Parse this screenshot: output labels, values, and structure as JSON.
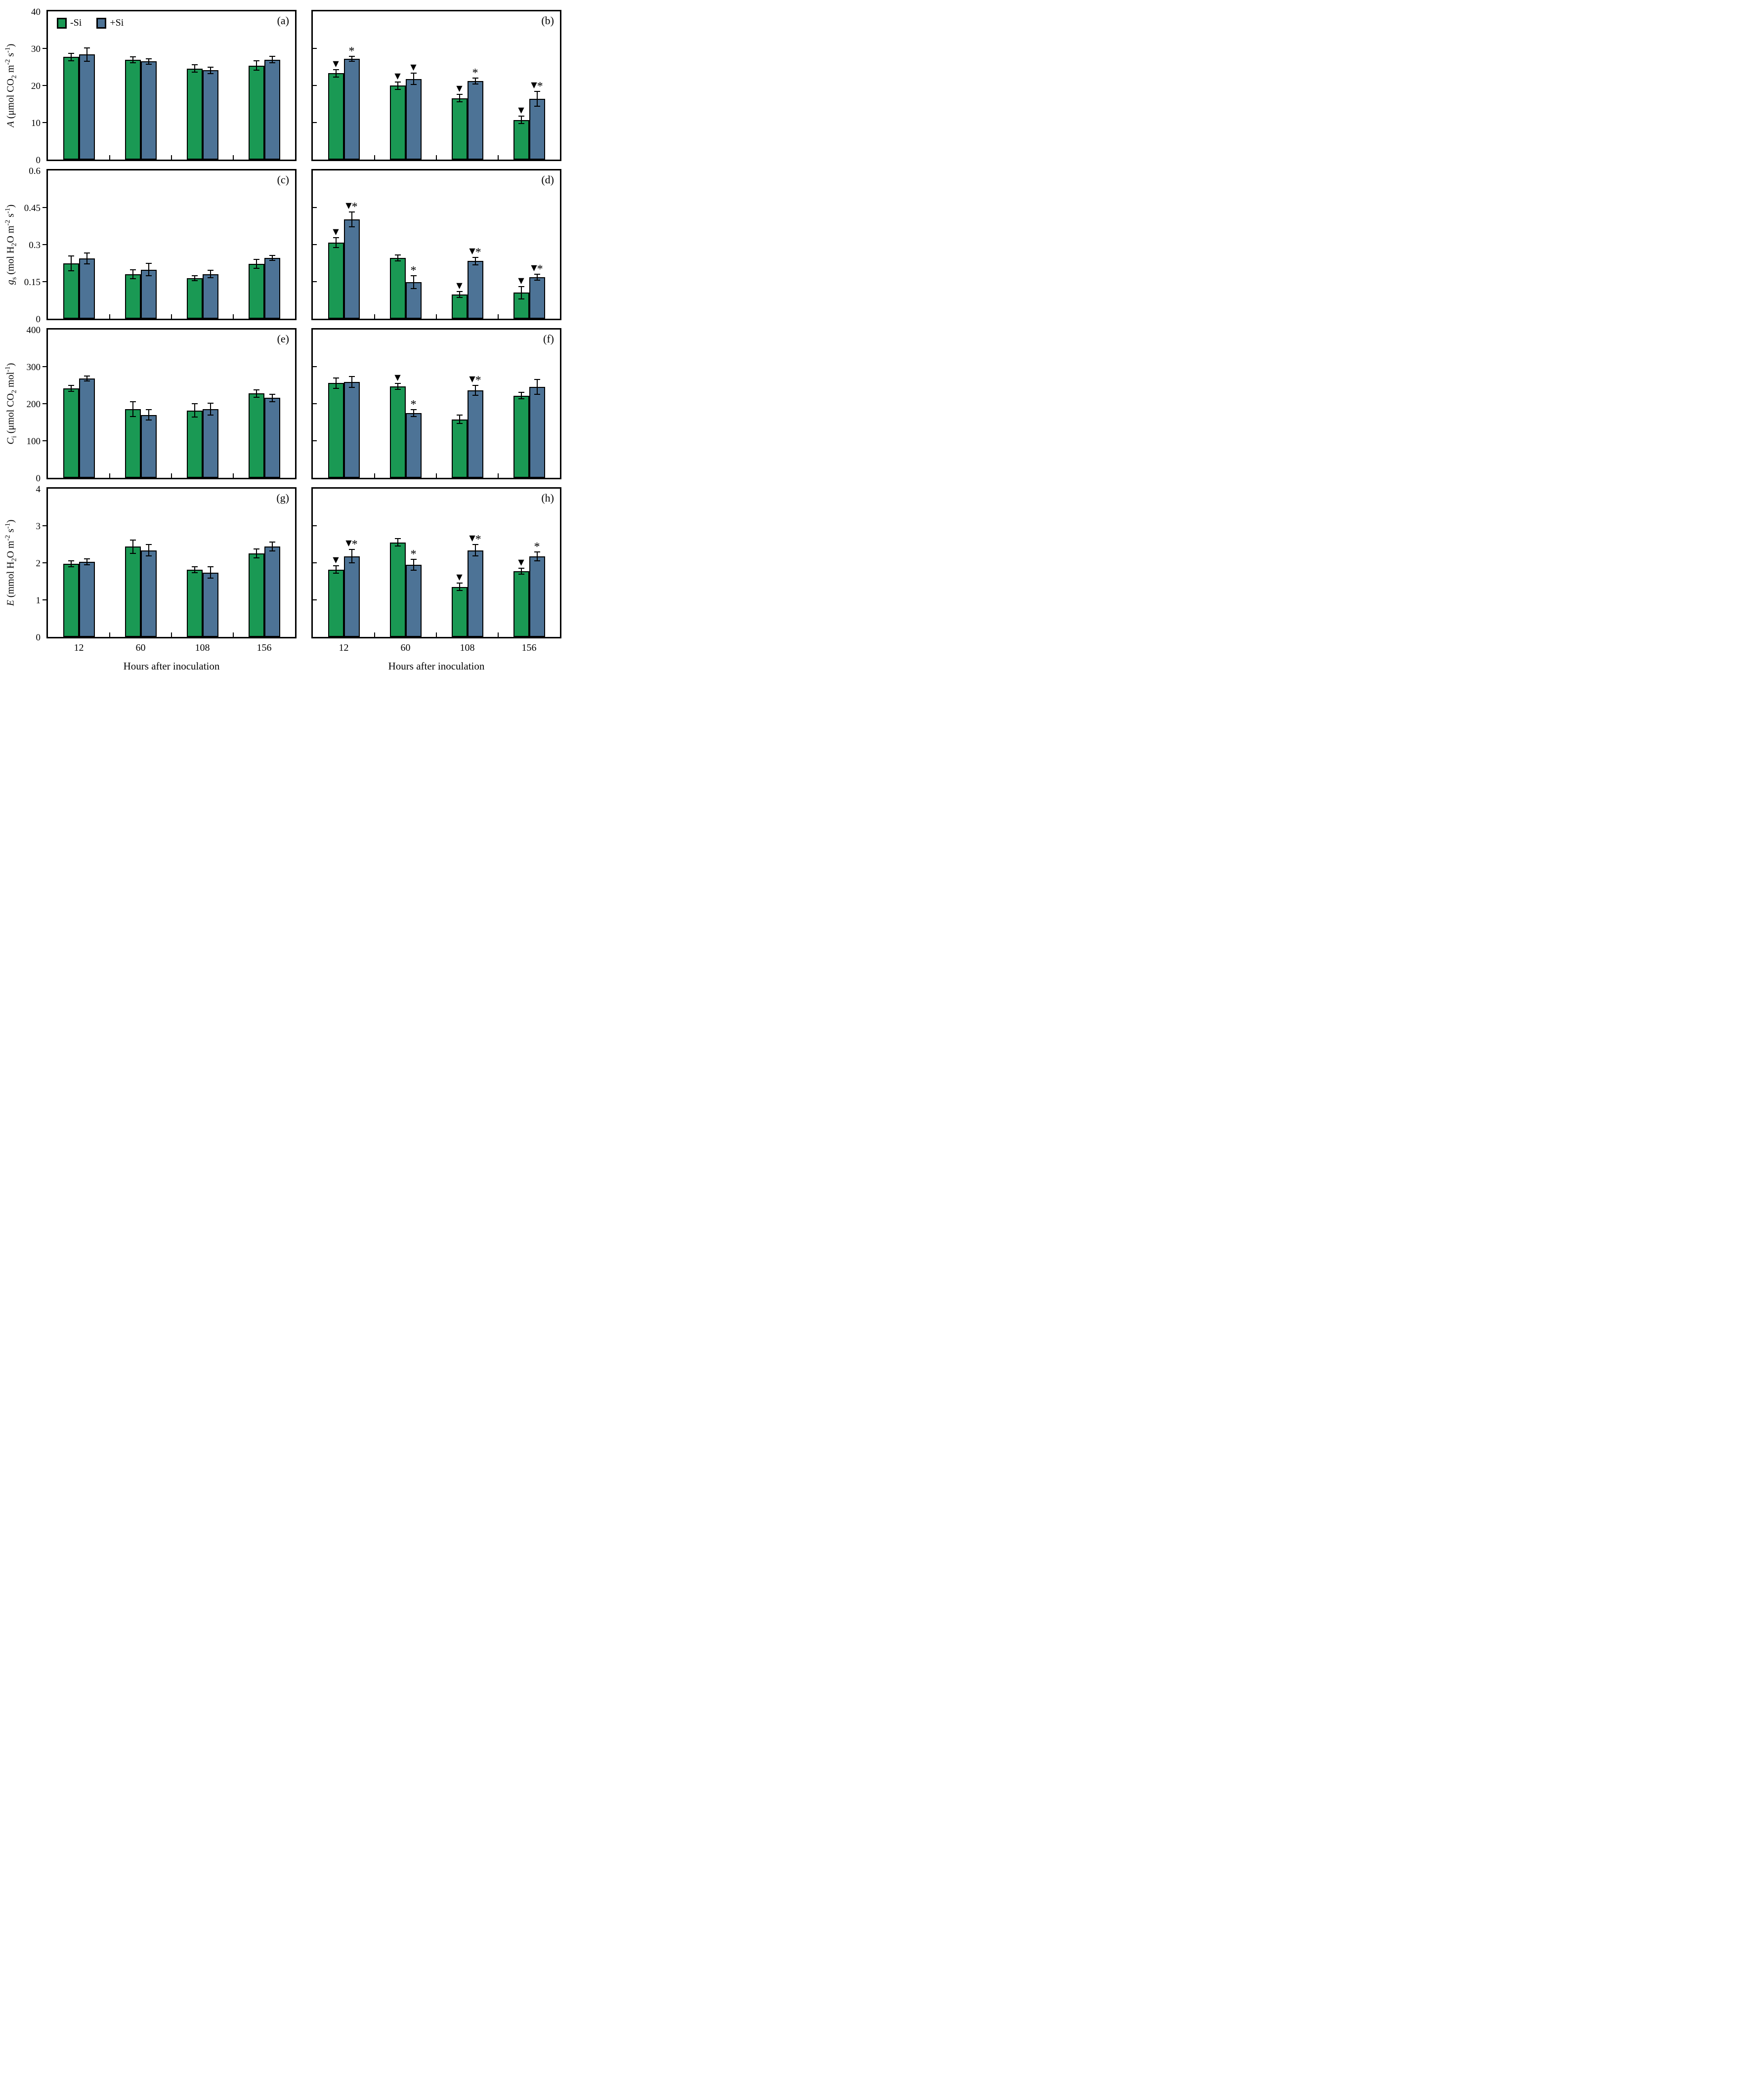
{
  "figure": {
    "legend": [
      {
        "label": "-Si",
        "color": "#1A9954"
      },
      {
        "label": "+Si",
        "color": "#4D7396"
      }
    ]
  },
  "chart_data": {
    "type": "bar",
    "categories": [
      "12",
      "60",
      "108",
      "156"
    ],
    "xlabel": "Hours after inoculation",
    "legend_position": "top-left of panel (a)",
    "grid": false,
    "panels": [
      {
        "id": "a",
        "label": "(a)",
        "ylim": [
          0,
          40
        ],
        "yticks": [
          "0",
          "10",
          "20",
          "30",
          "40"
        ],
        "ylabel": [
          {
            "t": "A",
            "s": "i"
          },
          {
            "t": " (μmol CO"
          },
          {
            "t": "2",
            "s": "sub"
          },
          {
            "t": " m"
          },
          {
            "t": "-2",
            "s": "sup"
          },
          {
            "t": " s"
          },
          {
            "t": "-1",
            "s": "sup"
          },
          {
            "t": ")"
          }
        ],
        "show_legend": true,
        "series": [
          {
            "name": "-Si",
            "values": [
              27.7,
              26.9,
              24.6,
              25.4
            ],
            "errors": [
              1.0,
              0.8,
              1.0,
              1.3
            ],
            "markers": [
              "",
              "",
              "",
              ""
            ]
          },
          {
            "name": "+Si",
            "values": [
              28.4,
              26.5,
              24.1,
              27.0
            ],
            "errors": [
              1.8,
              0.7,
              0.9,
              0.9
            ],
            "markers": [
              "",
              "",
              "",
              ""
            ]
          }
        ]
      },
      {
        "id": "b",
        "label": "(b)",
        "ylim": [
          0,
          40
        ],
        "yticks": [
          "0",
          "10",
          "20",
          "30",
          "40"
        ],
        "ylabel": [],
        "show_legend": false,
        "series": [
          {
            "name": "-Si",
            "values": [
              23.3,
              20.0,
              16.6,
              10.7
            ],
            "errors": [
              1.0,
              1.0,
              1.0,
              1.0
            ],
            "markers": [
              "▼",
              "▼",
              "▼",
              "▼"
            ]
          },
          {
            "name": "+Si",
            "values": [
              27.2,
              21.8,
              21.2,
              16.4
            ],
            "errors": [
              0.7,
              1.5,
              0.8,
              2.0
            ],
            "markers": [
              "*",
              "▼",
              "*",
              "▼*"
            ]
          }
        ]
      },
      {
        "id": "c",
        "label": "(c)",
        "ylim": [
          0,
          0.6
        ],
        "yticks": [
          "0",
          "0.15",
          "0.3",
          "0.45",
          "0.6"
        ],
        "ylabel": [
          {
            "t": "g",
            "s": "i"
          },
          {
            "t": "s",
            "s": "sub"
          },
          {
            "t": " (mol H"
          },
          {
            "t": "2",
            "s": "sub"
          },
          {
            "t": "O m"
          },
          {
            "t": "-2",
            "s": "sup"
          },
          {
            "t": " s"
          },
          {
            "t": "-1",
            "s": "sup"
          },
          {
            "t": ")"
          }
        ],
        "show_legend": false,
        "series": [
          {
            "name": "-Si",
            "values": [
              0.224,
              0.181,
              0.165,
              0.223
            ],
            "errors": [
              0.03,
              0.018,
              0.01,
              0.018
            ],
            "markers": [
              "",
              "",
              "",
              ""
            ]
          },
          {
            "name": "+Si",
            "values": [
              0.245,
              0.199,
              0.181,
              0.247
            ],
            "errors": [
              0.022,
              0.025,
              0.015,
              0.01
            ],
            "markers": [
              "",
              "",
              "",
              ""
            ]
          }
        ]
      },
      {
        "id": "d",
        "label": "(d)",
        "ylim": [
          0,
          0.6
        ],
        "yticks": [
          "0",
          "0.15",
          "0.3",
          "0.45",
          "0.6"
        ],
        "ylabel": [],
        "show_legend": false,
        "series": [
          {
            "name": "-Si",
            "values": [
              0.308,
              0.246,
              0.099,
              0.106
            ],
            "errors": [
              0.02,
              0.012,
              0.012,
              0.025
            ],
            "markers": [
              "▼",
              "",
              "▼",
              "▼"
            ]
          },
          {
            "name": "+Si",
            "values": [
              0.403,
              0.149,
              0.234,
              0.169
            ],
            "errors": [
              0.03,
              0.026,
              0.015,
              0.012
            ],
            "markers": [
              "▼*",
              "*",
              "▼*",
              "▼*"
            ]
          }
        ]
      },
      {
        "id": "e",
        "label": "(e)",
        "ylim": [
          0,
          400
        ],
        "yticks": [
          "0",
          "100",
          "200",
          "300",
          "400"
        ],
        "ylabel": [
          {
            "t": "C",
            "s": "i"
          },
          {
            "t": "i",
            "s": "sub"
          },
          {
            "t": " (μmol CO"
          },
          {
            "t": "2",
            "s": "sub"
          },
          {
            "t": " mol"
          },
          {
            "t": "-1",
            "s": "sup"
          },
          {
            "t": ")"
          }
        ],
        "show_legend": false,
        "series": [
          {
            "name": "-Si",
            "values": [
              241,
              185,
              182,
              228
            ],
            "errors": [
              8,
              20,
              18,
              10
            ],
            "markers": [
              "",
              "",
              "",
              ""
            ]
          },
          {
            "name": "+Si",
            "values": [
              268,
              170,
              186,
              216
            ],
            "errors": [
              7,
              14,
              16,
              10
            ],
            "markers": [
              "",
              "",
              "",
              ""
            ]
          }
        ]
      },
      {
        "id": "f",
        "label": "(f)",
        "ylim": [
          0,
          400
        ],
        "yticks": [
          "0",
          "100",
          "200",
          "300",
          "400"
        ],
        "ylabel": [],
        "show_legend": false,
        "series": [
          {
            "name": "-Si",
            "values": [
              256,
              247,
              158,
              222
            ],
            "errors": [
              14,
              8,
              11,
              9
            ],
            "markers": [
              "",
              "▼",
              "",
              ""
            ]
          },
          {
            "name": "+Si",
            "values": [
              259,
              175,
              236,
              245
            ],
            "errors": [
              15,
              9,
              13,
              20
            ],
            "markers": [
              "",
              "*",
              "▼*",
              ""
            ]
          }
        ]
      },
      {
        "id": "g",
        "label": "(g)",
        "ylim": [
          0,
          4
        ],
        "yticks": [
          "0",
          "1",
          "2",
          "3",
          "4"
        ],
        "ylabel": [
          {
            "t": "E",
            "s": "i"
          },
          {
            "t": " (mmol H"
          },
          {
            "t": "2",
            "s": "sub"
          },
          {
            "t": "O m"
          },
          {
            "t": "-2",
            "s": "sup"
          },
          {
            "t": " s"
          },
          {
            "t": "-1",
            "s": "sup"
          },
          {
            "t": ")"
          }
        ],
        "show_legend": false,
        "series": [
          {
            "name": "-Si",
            "values": [
              1.97,
              2.44,
              1.82,
              2.26
            ],
            "errors": [
              0.08,
              0.18,
              0.08,
              0.12
            ],
            "markers": [
              "",
              "",
              "",
              ""
            ]
          },
          {
            "name": "+Si",
            "values": [
              2.03,
              2.34,
              1.74,
              2.44
            ],
            "errors": [
              0.08,
              0.15,
              0.15,
              0.12
            ],
            "markers": [
              "",
              "",
              "",
              ""
            ]
          }
        ]
      },
      {
        "id": "h",
        "label": "(h)",
        "ylim": [
          0,
          4
        ],
        "yticks": [
          "0",
          "1",
          "2",
          "3",
          "4"
        ],
        "ylabel": [],
        "show_legend": false,
        "series": [
          {
            "name": "-Si",
            "values": [
              1.82,
              2.55,
              1.35,
              1.78
            ],
            "errors": [
              0.1,
              0.1,
              0.1,
              0.08
            ],
            "markers": [
              "▼",
              "",
              "▼",
              "▼"
            ]
          },
          {
            "name": "+Si",
            "values": [
              2.18,
              1.95,
              2.34,
              2.17
            ],
            "errors": [
              0.18,
              0.15,
              0.15,
              0.12
            ],
            "markers": [
              "▼*",
              "*",
              "▼*",
              "*"
            ]
          }
        ]
      }
    ]
  }
}
